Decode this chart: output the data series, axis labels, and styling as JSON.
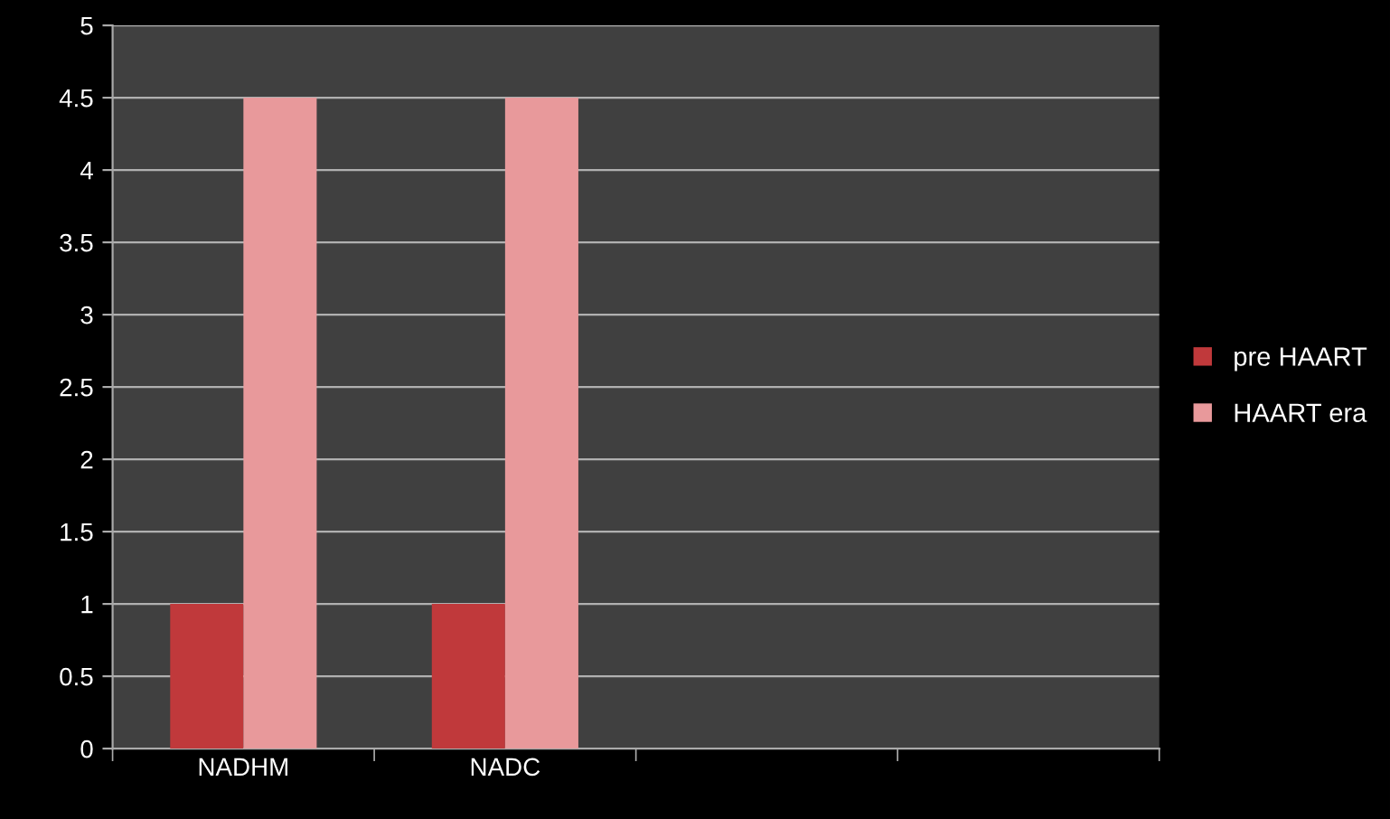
{
  "chart_data": {
    "type": "bar",
    "categories": [
      "NADHM",
      "NADC",
      null,
      null
    ],
    "series": [
      {
        "name": "pre HAART",
        "color": "#c0393b",
        "values": [
          1,
          1,
          null,
          null
        ]
      },
      {
        "name": "HAART era",
        "color": "#e8999b",
        "values": [
          4.5,
          4.5,
          null,
          null
        ]
      }
    ],
    "ylim": [
      0,
      5
    ],
    "yticks": [
      0,
      0.5,
      1,
      1.5,
      2,
      2.5,
      3,
      3.5,
      4,
      4.5,
      5
    ],
    "grid": "y",
    "legend": "right"
  }
}
